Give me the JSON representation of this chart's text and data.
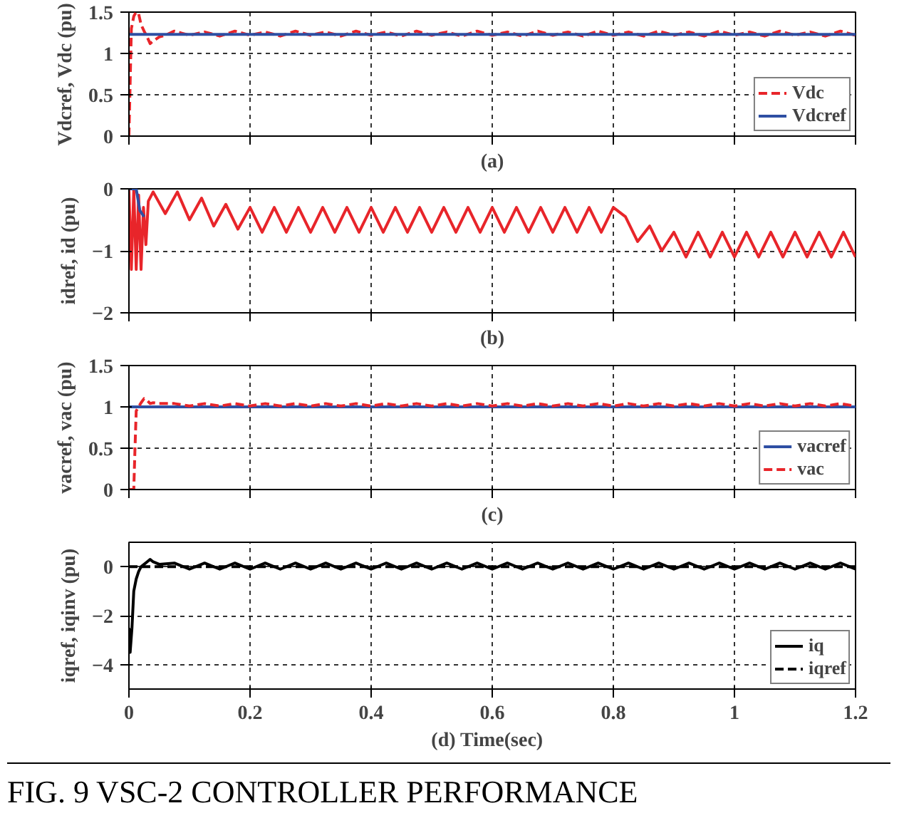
{
  "chart_data": [
    {
      "type": "line",
      "xlabel": "(a)",
      "ylabel": "Vdcref, Vdc (pu)",
      "xlim": [
        0,
        1.2
      ],
      "xticks": [
        0,
        0.2,
        0.4,
        0.6,
        0.8,
        1,
        1.2
      ],
      "ylim": [
        0,
        1.5
      ],
      "yticks": [
        0,
        0.5,
        1,
        1.5
      ],
      "tick_labels": "y",
      "grid": true,
      "legend": "bottom right",
      "series": [
        {
          "name": "Vdc",
          "color": "#e8252a",
          "line_style": "dashed",
          "x": [
            0,
            0.004,
            0.008,
            0.012,
            0.016,
            0.02,
            0.025,
            0.03,
            0.035,
            0.04,
            0.05,
            0.06,
            0.075,
            0.1,
            0.125,
            0.15,
            0.175,
            0.2,
            0.225,
            0.25,
            0.275,
            0.3,
            0.325,
            0.35,
            0.375,
            0.4,
            0.425,
            0.45,
            0.475,
            0.5,
            0.525,
            0.55,
            0.575,
            0.6,
            0.625,
            0.65,
            0.675,
            0.7,
            0.725,
            0.75,
            0.775,
            0.8,
            0.825,
            0.85,
            0.875,
            0.9,
            0.925,
            0.95,
            0.975,
            1,
            1.025,
            1.05,
            1.075,
            1.1,
            1.125,
            1.15,
            1.175,
            1.2
          ],
          "values": [
            0,
            1.3,
            1.45,
            1.5,
            1.48,
            1.35,
            1.27,
            1.2,
            1.12,
            1.15,
            1.2,
            1.22,
            1.27,
            1.22,
            1.26,
            1.21,
            1.27,
            1.22,
            1.26,
            1.21,
            1.27,
            1.22,
            1.26,
            1.21,
            1.27,
            1.22,
            1.26,
            1.21,
            1.27,
            1.22,
            1.26,
            1.21,
            1.27,
            1.22,
            1.26,
            1.21,
            1.27,
            1.22,
            1.26,
            1.21,
            1.27,
            1.22,
            1.26,
            1.21,
            1.27,
            1.22,
            1.26,
            1.21,
            1.27,
            1.22,
            1.26,
            1.21,
            1.27,
            1.22,
            1.26,
            1.21,
            1.27,
            1.22
          ]
        },
        {
          "name": "Vdcref",
          "color": "#2e4fa3",
          "line_style": "solid",
          "x": [
            0,
            1.2
          ],
          "values": [
            1.23,
            1.23
          ]
        }
      ]
    },
    {
      "type": "line",
      "xlabel": "(b)",
      "ylabel": "idref, id (pu)",
      "xlim": [
        0,
        1.2
      ],
      "xticks": [
        0,
        0.2,
        0.4,
        0.6,
        0.8,
        1,
        1.2
      ],
      "ylim": [
        -2,
        0
      ],
      "yticks": [
        -2,
        -1,
        0
      ],
      "tick_labels": "y",
      "grid": true,
      "series": [
        {
          "color": "#e8252a",
          "line_style": "solid",
          "x": [
            0,
            0.004,
            0.008,
            0.012,
            0.016,
            0.02,
            0.024,
            0.028,
            0.032,
            0.04,
            0.06,
            0.08,
            0.1,
            0.12,
            0.14,
            0.16,
            0.18,
            0.2,
            0.22,
            0.24,
            0.26,
            0.28,
            0.3,
            0.32,
            0.34,
            0.36,
            0.38,
            0.4,
            0.42,
            0.44,
            0.46,
            0.48,
            0.5,
            0.52,
            0.54,
            0.56,
            0.58,
            0.6,
            0.62,
            0.64,
            0.66,
            0.68,
            0.7,
            0.72,
            0.74,
            0.76,
            0.78,
            0.8,
            0.82,
            0.84,
            0.86,
            0.88,
            0.9,
            0.92,
            0.94,
            0.96,
            0.98,
            1,
            1.02,
            1.04,
            1.06,
            1.08,
            1.1,
            1.12,
            1.14,
            1.16,
            1.18,
            1.2
          ],
          "values": [
            0,
            -1.3,
            0,
            -1.3,
            -0.1,
            -1.3,
            -0.3,
            -0.9,
            -0.2,
            -0.05,
            -0.4,
            -0.05,
            -0.5,
            -0.15,
            -0.6,
            -0.25,
            -0.65,
            -0.3,
            -0.7,
            -0.3,
            -0.7,
            -0.3,
            -0.7,
            -0.3,
            -0.7,
            -0.3,
            -0.7,
            -0.3,
            -0.7,
            -0.3,
            -0.7,
            -0.3,
            -0.7,
            -0.3,
            -0.7,
            -0.3,
            -0.7,
            -0.3,
            -0.7,
            -0.3,
            -0.7,
            -0.3,
            -0.7,
            -0.3,
            -0.7,
            -0.3,
            -0.7,
            -0.3,
            -0.45,
            -0.85,
            -0.6,
            -1.0,
            -0.7,
            -1.1,
            -0.7,
            -1.1,
            -0.7,
            -1.1,
            -0.7,
            -1.1,
            -0.7,
            -1.1,
            -0.7,
            -1.1,
            -0.7,
            -1.1,
            -0.7,
            -1.1
          ]
        },
        {
          "color": "#2e4fa3",
          "line_style": "solid",
          "x": [
            0,
            0.012,
            0.018,
            0.025
          ],
          "values": [
            0,
            0,
            -0.35,
            -0.45
          ]
        }
      ]
    },
    {
      "type": "line",
      "xlabel": "(c)",
      "ylabel": "vacref, vac (pu)",
      "xlim": [
        0,
        1.2
      ],
      "xticks": [
        0,
        0.2,
        0.4,
        0.6,
        0.8,
        1,
        1.2
      ],
      "ylim": [
        0,
        1.5
      ],
      "yticks": [
        0,
        0.5,
        1,
        1.5
      ],
      "tick_labels": "y",
      "grid": true,
      "legend": "bottom right",
      "series": [
        {
          "name": "vacref",
          "color": "#2e4fa3",
          "line_style": "solid",
          "x": [
            0,
            1.2
          ],
          "values": [
            1,
            1
          ]
        },
        {
          "name": "vac",
          "color": "#e8252a",
          "line_style": "dashed",
          "x": [
            0,
            0.008,
            0.01,
            0.012,
            0.016,
            0.02,
            0.025,
            0.03,
            0.035,
            0.04,
            0.05,
            0.075,
            0.1,
            0.125,
            0.15,
            0.175,
            0.2,
            0.225,
            0.25,
            0.275,
            0.3,
            0.325,
            0.35,
            0.375,
            0.4,
            0.425,
            0.45,
            0.475,
            0.5,
            0.525,
            0.55,
            0.575,
            0.6,
            0.625,
            0.65,
            0.675,
            0.7,
            0.725,
            0.75,
            0.775,
            0.8,
            0.825,
            0.85,
            0.875,
            0.9,
            0.925,
            0.95,
            0.975,
            1,
            1.025,
            1.05,
            1.075,
            1.1,
            1.125,
            1.15,
            1.175,
            1.2
          ],
          "values": [
            0,
            0,
            0.5,
            0.95,
            1.0,
            1.05,
            1.1,
            1.08,
            1.04,
            1.05,
            1.04,
            1.04,
            1.01,
            1.04,
            1.01,
            1.04,
            1.01,
            1.04,
            1.01,
            1.04,
            1.01,
            1.04,
            1.01,
            1.04,
            1.01,
            1.04,
            1.01,
            1.04,
            1.01,
            1.04,
            1.01,
            1.04,
            1.01,
            1.04,
            1.01,
            1.04,
            1.01,
            1.04,
            1.01,
            1.04,
            1.01,
            1.04,
            1.01,
            1.04,
            1.01,
            1.04,
            1.01,
            1.04,
            1.01,
            1.04,
            1.01,
            1.04,
            1.01,
            1.04,
            1.01,
            1.04,
            1.01
          ]
        }
      ]
    },
    {
      "type": "line",
      "xlabel": "(d)   Time(sec)",
      "ylabel": "iqref, iqinv (pu)",
      "xlim": [
        0,
        1.2
      ],
      "xticks": [
        0,
        0.2,
        0.4,
        0.6,
        0.8,
        1,
        1.2
      ],
      "ylim": [
        -5,
        1
      ],
      "yticks": [
        -4,
        -2,
        0
      ],
      "grid": true,
      "legend": "bottom right",
      "annotations": [
        "FIG. 9    VSC-2 CONTROLLER PERFORMANCE"
      ],
      "series": [
        {
          "name": "iq",
          "color": "#000000",
          "line_style": "solid",
          "x": [
            0,
            0.002,
            0.005,
            0.008,
            0.012,
            0.016,
            0.02,
            0.03,
            0.035,
            0.04,
            0.05,
            0.075,
            0.1,
            0.125,
            0.15,
            0.175,
            0.2,
            0.225,
            0.25,
            0.275,
            0.3,
            0.325,
            0.35,
            0.375,
            0.4,
            0.425,
            0.45,
            0.475,
            0.5,
            0.525,
            0.55,
            0.575,
            0.6,
            0.625,
            0.65,
            0.675,
            0.7,
            0.725,
            0.75,
            0.775,
            0.8,
            0.825,
            0.85,
            0.875,
            0.9,
            0.925,
            0.95,
            0.975,
            1,
            1.025,
            1.05,
            1.075,
            1.1,
            1.125,
            1.15,
            1.175,
            1.2
          ],
          "values": [
            -2.5,
            -3.5,
            -2.5,
            -1,
            -0.5,
            -0.2,
            0,
            0.2,
            0.3,
            0.2,
            0.1,
            0.15,
            -0.1,
            0.15,
            -0.1,
            0.15,
            -0.1,
            0.15,
            -0.1,
            0.15,
            -0.1,
            0.15,
            -0.1,
            0.15,
            -0.1,
            0.15,
            -0.1,
            0.15,
            -0.1,
            0.15,
            -0.1,
            0.15,
            -0.1,
            0.15,
            -0.1,
            0.15,
            -0.1,
            0.15,
            -0.1,
            0.15,
            -0.1,
            0.15,
            -0.1,
            0.15,
            -0.1,
            0.15,
            -0.1,
            0.15,
            -0.1,
            0.15,
            -0.1,
            0.15,
            -0.1,
            0.15,
            -0.1,
            0.15,
            -0.1
          ]
        },
        {
          "name": "iqref",
          "color": "#000000",
          "line_style": "dashed",
          "x": [
            0,
            1.2
          ],
          "values": [
            0,
            0
          ]
        }
      ]
    }
  ]
}
